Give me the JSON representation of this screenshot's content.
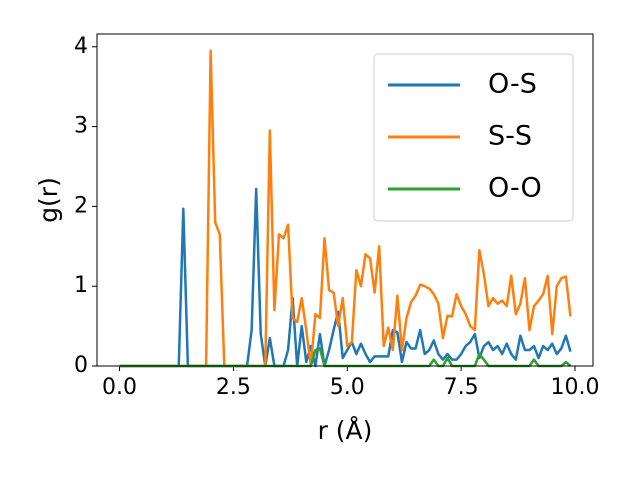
{
  "chart_data": {
    "type": "line",
    "x_label": "r (Å)",
    "y_label": "g(r)",
    "x": [
      0,
      0.1,
      0.2,
      0.3,
      0.4,
      0.5,
      0.6,
      0.7,
      0.8,
      0.9,
      1,
      1.1,
      1.2,
      1.3,
      1.4,
      1.5,
      1.6,
      1.7,
      1.8,
      1.9,
      2,
      2.1,
      2.2,
      2.3,
      2.4,
      2.5,
      2.6,
      2.7,
      2.8,
      2.9,
      3,
      3.1,
      3.2,
      3.3,
      3.4,
      3.5,
      3.6,
      3.7,
      3.8,
      3.9,
      4,
      4.1,
      4.2,
      4.3,
      4.4,
      4.5,
      4.6,
      4.7,
      4.8,
      4.9,
      5,
      5.1,
      5.2,
      5.3,
      5.4,
      5.5,
      5.6,
      5.7,
      5.8,
      5.9,
      6,
      6.1,
      6.2,
      6.3,
      6.4,
      6.5,
      6.6,
      6.7,
      6.8,
      6.9,
      7,
      7.1,
      7.2,
      7.3,
      7.4,
      7.5,
      7.6,
      7.7,
      7.8,
      7.9,
      8,
      8.1,
      8.2,
      8.3,
      8.4,
      8.5,
      8.6,
      8.7,
      8.8,
      8.9,
      9,
      9.1,
      9.2,
      9.3,
      9.4,
      9.5,
      9.6,
      9.7,
      9.8,
      9.9
    ],
    "series": [
      {
        "name": "O-S",
        "color": "#1f77b4",
        "values": [
          0,
          0,
          0,
          0,
          0,
          0,
          0,
          0,
          0,
          0,
          0,
          0,
          0,
          0,
          1.97,
          0,
          0,
          0,
          0,
          0,
          0,
          0,
          0,
          0,
          0,
          0,
          0,
          0,
          0,
          0.45,
          2.22,
          0.4,
          0,
          0.35,
          0,
          0,
          0,
          0.2,
          0.85,
          0,
          0.5,
          0.05,
          0.25,
          0,
          0.4,
          0,
          0.2,
          0.45,
          0.68,
          0.1,
          0.2,
          0.3,
          0.15,
          0.28,
          0.15,
          0.05,
          0.12,
          0.12,
          0.12,
          0.12,
          0.45,
          0.42,
          0.05,
          0.3,
          0.22,
          0.22,
          0.45,
          0.15,
          0.2,
          0.32,
          0.15,
          0.08,
          0.15,
          0.08,
          0.08,
          0.15,
          0.25,
          0.3,
          0.4,
          0.1,
          0.25,
          0.3,
          0.2,
          0.25,
          0.15,
          0.28,
          0.15,
          0.08,
          0.38,
          0.2,
          0.2,
          0.25,
          0.1,
          0.25,
          0.2,
          0.28,
          0.15,
          0.22,
          0.38,
          0.18
        ]
      },
      {
        "name": "S-S",
        "color": "#ff7f0e",
        "values": [
          0,
          0,
          0,
          0,
          0,
          0,
          0,
          0,
          0,
          0,
          0,
          0,
          0,
          0,
          0,
          0,
          0,
          0,
          0,
          0,
          3.95,
          1.8,
          1.65,
          0,
          0,
          0,
          0,
          0,
          0,
          0,
          0,
          0,
          0,
          2.95,
          0.7,
          1.65,
          1.6,
          1.77,
          0.6,
          0.55,
          0.85,
          0.45,
          0,
          0.65,
          0.6,
          1.6,
          0.95,
          0.92,
          0.5,
          0.85,
          0.25,
          0.3,
          1.2,
          1.0,
          1.4,
          1.35,
          0.92,
          1.5,
          0.25,
          0.48,
          0.2,
          0.88,
          0.2,
          0.6,
          0.8,
          0.88,
          1.02,
          1.0,
          0.97,
          0.9,
          0.78,
          0.35,
          0.63,
          0.62,
          0.9,
          0.75,
          0.65,
          0.5,
          0.45,
          1.45,
          1.15,
          0.75,
          0.85,
          0.78,
          0.82,
          0.75,
          1.13,
          0.65,
          0.78,
          1.1,
          0.45,
          0.75,
          0.82,
          0.9,
          1.13,
          0.4,
          1.0,
          1.1,
          1.12,
          0.62
        ]
      },
      {
        "name": "O-O",
        "color": "#2ca02c",
        "values": [
          0,
          0,
          0,
          0,
          0,
          0,
          0,
          0,
          0,
          0,
          0,
          0,
          0,
          0,
          0,
          0,
          0,
          0,
          0,
          0,
          0,
          0,
          0,
          0,
          0,
          0,
          0,
          0,
          0,
          0,
          0,
          0,
          0,
          0,
          0,
          0,
          0,
          0,
          0,
          0,
          0,
          0,
          0,
          0.2,
          0.22,
          0,
          0,
          0,
          0,
          0,
          0,
          0,
          0,
          0,
          0,
          0,
          0,
          0,
          0,
          0,
          0,
          0,
          0,
          0,
          0,
          0,
          0,
          0,
          0,
          0.08,
          0,
          0,
          0.1,
          0,
          0,
          0,
          0,
          0,
          0,
          0.15,
          0.08,
          0,
          0,
          0,
          0,
          0,
          0,
          0,
          0,
          0,
          0,
          0.08,
          0,
          0,
          0,
          0,
          0,
          0,
          0.05,
          0
        ]
      }
    ],
    "xlim": [
      -0.495,
      10.395
    ],
    "ylim": [
      0,
      4.16
    ],
    "xticks": [
      {
        "value": 0,
        "label": "0.0"
      },
      2.5,
      {
        "value": 5,
        "label": "5.0"
      },
      7.5,
      {
        "value": 10,
        "label": "10.0"
      }
    ],
    "yticks": [
      0,
      1,
      2,
      3,
      4
    ],
    "legend": "upper right",
    "grid": false
  }
}
